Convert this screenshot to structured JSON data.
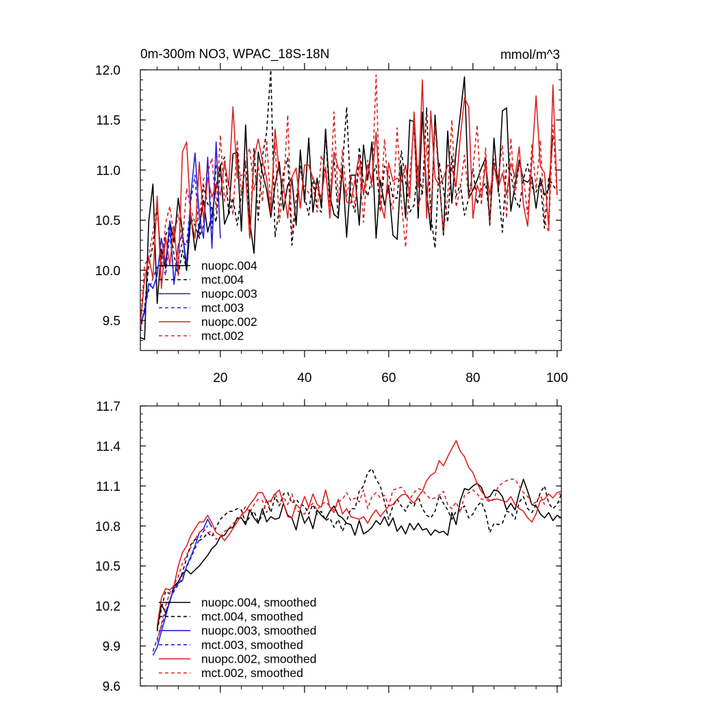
{
  "chart_data": [
    {
      "type": "line",
      "title": "0m-300m NO3, WPAC_18S-18N",
      "units": "mmol/m^3",
      "xlabel": "",
      "ylabel": "",
      "xlim": [
        1,
        101
      ],
      "ylim": [
        9.2,
        12.0
      ],
      "x_ticks": [
        20,
        40,
        60,
        80,
        100
      ],
      "x_tick_labels": [
        "20",
        "40",
        "60",
        "80",
        "100"
      ],
      "y_ticks": [
        9.5,
        10.0,
        10.5,
        11.0,
        11.5,
        12.0
      ],
      "y_tick_labels": [
        "9.5",
        "10.0",
        "10.5",
        "11.0",
        "11.5",
        "12.0"
      ],
      "legend_position": "bottom-left",
      "series": [
        {
          "name": "nuopc.004",
          "color": "#000000",
          "dash": "solid",
          "x_start": 1,
          "values": [
            9.33,
            9.31,
            10.49,
            10.86,
            9.67,
            10.21,
            10.02,
            10.49,
            10.28,
            10.72,
            10.38,
            10.0,
            10.55,
            10.2,
            10.45,
            10.7,
            10.38,
            10.55,
            10.83,
            11.05,
            10.46,
            10.57,
            11.16,
            11.18,
            10.39,
            11.45,
            10.48,
            10.17,
            11.18,
            10.97,
            10.8,
            10.53,
            10.85,
            11.08,
            10.6,
            10.85,
            10.92,
            10.45,
            11.2,
            10.68,
            11.32,
            10.58,
            10.92,
            10.63,
            11.41,
            10.75,
            10.56,
            10.52,
            11.02,
            10.33,
            10.95,
            10.95,
            10.45,
            11.25,
            10.9,
            11.28,
            10.32,
            10.9,
            10.65,
            10.85,
            10.35,
            10.31,
            11.05,
            10.52,
            11.5,
            11.48,
            10.52,
            11.58,
            10.78,
            10.4,
            11.55,
            10.92,
            10.35,
            11.39,
            10.67,
            11.2,
            11.55,
            11.93,
            10.72,
            10.8,
            10.9,
            11.02,
            11.12,
            10.45,
            11.32,
            10.78,
            11.59,
            11.62,
            10.59,
            10.85,
            11.1,
            10.9,
            10.88,
            10.93,
            10.62,
            10.92,
            10.75,
            10.81,
            11.35
          ]
        },
        {
          "name": "mct.004",
          "color": "#000000",
          "dash": "dashed",
          "x_start": 1,
          "values": [
            9.4,
            9.62,
            10.05,
            10.25,
            10.6,
            10.1,
            10.35,
            10.45,
            10.15,
            9.95,
            10.2,
            10.0,
            10.52,
            10.45,
            10.32,
            10.85,
            10.66,
            10.62,
            10.48,
            11.04,
            11.13,
            10.55,
            10.72,
            10.45,
            10.76,
            11.08,
            10.32,
            11.22,
            10.5,
            11.14,
            11.38,
            12.0,
            10.33,
            10.62,
            10.98,
            11.12,
            10.25,
            10.7,
            11.04,
            10.74,
            10.55,
            10.93,
            10.63,
            10.58,
            11.36,
            10.68,
            11.12,
            10.53,
            11.03,
            11.63,
            10.72,
            10.58,
            11.23,
            10.87,
            10.74,
            10.92,
            11.05,
            10.58,
            11.04,
            10.96,
            10.72,
            10.72,
            11.19,
            10.88,
            10.58,
            10.65,
            11.05,
            10.75,
            11.62,
            10.55,
            10.22,
            11.08,
            10.81,
            10.48,
            11.14,
            10.74,
            10.86,
            10.55,
            10.72,
            11.02,
            10.66,
            10.82,
            10.87,
            10.53,
            11.07,
            10.84,
            10.38,
            11.06,
            10.97,
            10.72,
            10.62,
            10.91,
            11.06,
            10.83,
            10.78,
            10.88,
            10.42,
            10.92,
            10.85,
            10.79
          ]
        },
        {
          "name": "nuopc.003",
          "color": "#1f1fdd",
          "dash": "solid",
          "x_start": 1,
          "values": [
            9.47,
            9.58,
            9.87,
            9.82,
            9.95,
            10.32,
            10.07,
            10.49,
            9.86,
            10.25,
            10.37,
            10.06,
            10.75,
            11.17,
            10.54,
            10.32,
            11.13,
            10.22,
            11.28,
            10.32
          ]
        },
        {
          "name": "mct.003",
          "color": "#1f1fdd",
          "dash": "dashed",
          "x_start": 1,
          "values": [
            9.42,
            9.62,
            9.8,
            9.92,
            10.03,
            10.08,
            9.95,
            10.38,
            9.9,
            10.12,
            10.28,
            10.25,
            10.7,
            10.95,
            10.32,
            10.45,
            11.1,
            10.42,
            11.05
          ]
        },
        {
          "name": "nuopc.002",
          "color": "#dd2020",
          "dash": "solid",
          "x_start": 1,
          "values": [
            9.45,
            9.91,
            10.13,
            9.92,
            10.74,
            9.82,
            10.33,
            10.05,
            10.44,
            9.95,
            11.18,
            11.28,
            10.52,
            10.32,
            11.08,
            10.5,
            10.92,
            10.73,
            10.86,
            10.75,
            11.08,
            10.84,
            11.63,
            10.92,
            10.95,
            10.95,
            10.32,
            11.12,
            11.31,
            11.09,
            10.92,
            10.57,
            11.41,
            10.97,
            10.84,
            10.52,
            10.93,
            11.02,
            10.62,
            11.05,
            11.05,
            10.92,
            10.82,
            10.73,
            11.03,
            10.52,
            11.18,
            11.02,
            10.95,
            10.68,
            10.67,
            10.91,
            11.15,
            10.75,
            11.05,
            10.88,
            11.38,
            10.68,
            10.52,
            11.07,
            10.89,
            10.92,
            10.88,
            11.05,
            10.72,
            11.58,
            10.83,
            11.9,
            10.52,
            11.59,
            10.92,
            10.85,
            10.92,
            11.05,
            11.02,
            10.84,
            11.33,
            11.72,
            11.63,
            10.52,
            10.85,
            10.73,
            11.06,
            10.75,
            11.05,
            10.82,
            10.97,
            10.75,
            11.07,
            10.93,
            11.23,
            10.65,
            10.44,
            11.1,
            11.74,
            11.04,
            10.97,
            10.43,
            11.85,
            10.75
          ]
        },
        {
          "name": "mct.002",
          "color": "#dd2020",
          "dash": "dashed",
          "x_start": 1,
          "values": [
            9.45,
            10.05,
            10.13,
            10.38,
            10.67,
            10.03,
            10.47,
            10.64,
            10.33,
            10.56,
            10.28,
            10.82,
            10.61,
            10.47,
            10.52,
            10.91,
            10.98,
            11.12,
            10.6,
            11.35,
            10.69,
            10.87,
            10.55,
            11.3,
            10.75,
            11.11,
            11.22,
            10.8,
            11.05,
            10.68,
            11.3,
            10.65,
            11.27,
            10.48,
            10.82,
            11.55,
            10.37,
            10.72,
            11.0,
            10.84,
            10.77,
            10.85,
            10.58,
            11.15,
            10.96,
            10.64,
            11.58,
            10.68,
            11.2,
            10.74,
            10.96,
            10.63,
            11.05,
            10.48,
            11.1,
            10.82,
            11.95,
            10.58,
            11.31,
            10.75,
            10.61,
            11.42,
            10.68,
            10.23,
            10.95,
            11.44,
            10.62,
            10.81,
            11.24,
            10.52,
            11.45,
            10.88,
            10.38,
            10.74,
            11.5,
            10.63,
            10.82,
            11.15,
            10.71,
            11.01,
            11.45,
            10.65,
            11.22,
            10.48,
            11.11,
            10.92,
            11.25,
            10.52,
            11.32,
            10.75,
            11.05,
            10.92,
            10.56,
            11.25,
            10.81,
            11.3,
            10.5,
            10.38,
            11.45,
            10.72
          ]
        }
      ]
    },
    {
      "type": "line",
      "title": "",
      "xlabel": "",
      "ylabel": "",
      "xlim": [
        1,
        101
      ],
      "ylim": [
        9.6,
        11.7
      ],
      "x_ticks": [
        20,
        40,
        60,
        80,
        100
      ],
      "x_tick_labels": [
        "",
        "",
        "",
        "",
        ""
      ],
      "y_ticks": [
        9.6,
        9.9,
        10.2,
        10.5,
        10.8,
        11.1,
        11.4,
        11.7
      ],
      "y_tick_labels": [
        "9.6",
        "9.9",
        "10.2",
        "10.5",
        "10.8",
        "11.1",
        "11.4",
        "11.7"
      ],
      "legend_position": "bottom-left",
      "series": [
        {
          "name": "nuopc.004, smoothed",
          "color": "#000000",
          "dash": "solid",
          "x_start": 5,
          "values": [
            10.03,
            10.21,
            10.15,
            10.23,
            10.35,
            10.38,
            10.44,
            10.47,
            10.44,
            10.47,
            10.5,
            10.54,
            10.58,
            10.63,
            10.66,
            10.72,
            10.73,
            10.78,
            10.79,
            10.86,
            10.86,
            10.81,
            10.92,
            10.86,
            10.82,
            10.93,
            10.83,
            10.87,
            10.85,
            10.86,
            10.97,
            10.88,
            10.86,
            10.77,
            10.92,
            10.82,
            10.87,
            10.78,
            10.92,
            10.88,
            10.85,
            10.91,
            10.95,
            10.88,
            10.86,
            10.82,
            10.81,
            10.73,
            10.84,
            10.74,
            10.76,
            10.79,
            10.84,
            10.81,
            10.87,
            10.8,
            10.86,
            10.76,
            10.8,
            10.74,
            10.82,
            10.77,
            10.82,
            10.77,
            10.78,
            10.73,
            10.77,
            10.75,
            10.76,
            10.73,
            10.9,
            10.81,
            10.99,
            11.08,
            11.07,
            11.1,
            11.12,
            11.09,
            11.01,
            11.02,
            11.07,
            11.06,
            11.02,
            10.92,
            10.97,
            10.92,
            11.05,
            11.15,
            11.06,
            10.96,
            10.95,
            10.89,
            10.86,
            10.9,
            10.84,
            10.88,
            10.86
          ]
        },
        {
          "name": "mct.004, smoothed",
          "color": "#000000",
          "dash": "dashed",
          "x_start": 5,
          "values": [
            10.01,
            10.18,
            10.31,
            10.29,
            10.33,
            10.38,
            10.45,
            10.56,
            10.66,
            10.7,
            10.69,
            10.71,
            10.75,
            10.72,
            10.79,
            10.85,
            10.88,
            10.91,
            10.91,
            10.93,
            10.92,
            10.82,
            10.87,
            10.91,
            10.83,
            10.88,
            11.0,
            10.9,
            11.02,
            10.95,
            11.04,
            11.05,
            10.97,
            11.0,
            10.96,
            10.95,
            10.89,
            10.96,
            10.89,
            10.91,
            10.84,
            10.86,
            10.79,
            10.85,
            10.76,
            10.84,
            10.93,
            10.93,
            11.06,
            11.1,
            11.2,
            11.23,
            11.15,
            11.1,
            10.98,
            10.85,
            10.95,
            11.0,
            10.95,
            10.91,
            10.98,
            10.95,
            11.02,
            10.93,
            10.88,
            10.86,
            10.91,
            11.03,
            10.97,
            10.92,
            10.85,
            10.91,
            10.92,
            10.95,
            10.86,
            10.89,
            10.95,
            10.98,
            10.9,
            10.75,
            10.82,
            10.81,
            10.82,
            10.91,
            10.9,
            10.85,
            10.98,
            11.02,
            10.93,
            10.9,
            10.96,
            11.05,
            11.1,
            10.97,
            10.93,
            10.96,
            11.04
          ]
        },
        {
          "name": "nuopc.003, smoothed",
          "color": "#1f1fdd",
          "dash": "solid",
          "x_start": 4,
          "values": [
            9.83,
            9.89,
            10.01,
            10.12,
            10.24,
            10.33,
            10.37,
            10.39,
            10.5,
            10.57,
            10.65,
            10.75,
            10.78,
            10.85,
            10.79
          ]
        },
        {
          "name": "mct.003, smoothed",
          "color": "#1f1fdd",
          "dash": "dashed",
          "x_start": 4,
          "values": [
            9.86,
            9.95,
            10.05,
            10.15,
            10.25,
            10.31,
            10.36,
            10.41,
            10.49,
            10.56,
            10.63,
            10.7,
            10.76,
            10.8
          ]
        },
        {
          "name": "nuopc.002, smoothed",
          "color": "#dd2020",
          "dash": "solid",
          "x_start": 5,
          "values": [
            10.05,
            10.26,
            10.33,
            10.32,
            10.35,
            10.5,
            10.6,
            10.65,
            10.73,
            10.78,
            10.83,
            10.83,
            10.88,
            10.82,
            10.75,
            10.73,
            10.69,
            10.73,
            10.78,
            10.83,
            10.88,
            10.91,
            10.96,
            11.0,
            11.05,
            11.05,
            10.98,
            10.99,
            11.04,
            11.07,
            10.97,
            10.87,
            10.86,
            10.96,
            10.93,
            11.02,
            10.94,
            11.04,
            10.96,
            10.94,
            11.07,
            10.94,
            10.9,
            11.0,
            10.89,
            10.93,
            10.87,
            10.86,
            10.85,
            10.87,
            10.82,
            10.88,
            10.92,
            10.87,
            10.91,
            10.95,
            10.96,
            11.0,
            11.03,
            11.04,
            11.0,
            10.97,
            11.02,
            11.06,
            11.14,
            11.18,
            11.2,
            11.29,
            11.25,
            11.32,
            11.38,
            11.44,
            11.36,
            11.32,
            11.24,
            11.2,
            11.12,
            11.06,
            11.02,
            10.99,
            11.0,
            11.0,
            10.99,
            10.98,
            11.02,
            10.96,
            10.93,
            10.91,
            10.86,
            10.83,
            10.89,
            10.99,
            11.0,
            11.04,
            11.01,
            11.05,
            11.06
          ]
        },
        {
          "name": "mct.002, smoothed",
          "color": "#dd2020",
          "dash": "dashed",
          "x_start": 5,
          "values": [
            9.93,
            10.06,
            10.2,
            10.3,
            10.36,
            10.42,
            10.52,
            10.58,
            10.64,
            10.7,
            10.75,
            10.78,
            10.75,
            10.76,
            10.7,
            10.72,
            10.76,
            10.78,
            10.82,
            10.84,
            10.88,
            10.95,
            10.9,
            10.96,
            11.0,
            10.99,
            10.9,
            10.98,
            11.05,
            10.95,
            11.02,
            10.96,
            11.04,
            10.92,
            10.9,
            10.89,
            10.94,
            10.97,
            10.92,
            10.96,
            10.98,
            10.95,
            10.92,
            10.98,
            11.0,
            11.05,
            10.99,
            11.01,
            10.98,
            11.07,
            10.93,
            11.02,
            11.05,
            11.01,
            11.03,
            10.95,
            11.07,
            11.08,
            11.09,
            11.05,
            11.0,
            11.05,
            11.08,
            11.07,
            11.03,
            11.0,
            11.01,
            11.03,
            11.06,
            10.96,
            10.93,
            10.98,
            10.9,
            11.03,
            11.05,
            11.07,
            11.04,
            11.0,
            11.0,
            10.98,
            11.0,
            11.1,
            11.12,
            11.14,
            11.15,
            11.15,
            11.1,
            11.05,
            11.02,
            10.96,
            10.98,
            11.03,
            10.96
          ]
        }
      ]
    }
  ]
}
